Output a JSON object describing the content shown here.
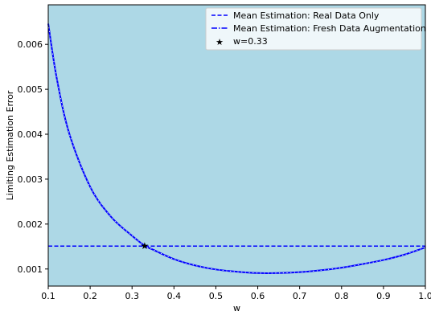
{
  "chart_data": {
    "type": "line",
    "xlabel": "w",
    "ylabel": "Limiting Estimation Error",
    "xlim": [
      0.1,
      1.0
    ],
    "ylim": [
      0.00062,
      0.00688
    ],
    "grid": false,
    "background": "#add8e6",
    "x_ticks": [
      "0.1",
      "0.2",
      "0.3",
      "0.4",
      "0.5",
      "0.6",
      "0.7",
      "0.8",
      "0.9",
      "1.0"
    ],
    "x_tick_values": [
      0.1,
      0.2,
      0.3,
      0.4,
      0.5,
      0.6,
      0.7,
      0.8,
      0.9,
      1.0
    ],
    "y_ticks": [
      "0.001",
      "0.002",
      "0.003",
      "0.004",
      "0.005",
      "0.006"
    ],
    "y_tick_values": [
      0.001,
      0.002,
      0.003,
      0.004,
      0.005,
      0.006
    ],
    "legend_placement": "top-right",
    "series": [
      {
        "name": "Mean Estimation: Real Data Only",
        "style": "dashed",
        "color": "#0000ff",
        "x": [
          0.1,
          1.0
        ],
        "y": [
          0.00151,
          0.00151
        ]
      },
      {
        "name": "Mean Estimation: Fresh Data Augmentation",
        "style": "dashdot",
        "color": "#0000ff",
        "x": [
          0.1,
          0.12,
          0.15,
          0.2,
          0.25,
          0.3,
          0.33,
          0.35,
          0.4,
          0.45,
          0.5,
          0.55,
          0.6,
          0.65,
          0.7,
          0.75,
          0.8,
          0.85,
          0.9,
          0.95,
          1.0
        ],
        "y": [
          0.00646,
          0.00526,
          0.00402,
          0.00283,
          0.00216,
          0.00174,
          0.00152,
          0.00143,
          0.00122,
          0.00108,
          0.00099,
          0.00094,
          0.00091,
          0.00091,
          0.00093,
          0.00097,
          0.00103,
          0.00111,
          0.0012,
          0.00132,
          0.00148
        ]
      }
    ],
    "marker": {
      "name": "w=0.33",
      "symbol": "star",
      "color": "#000000",
      "x": 0.33,
      "y": 0.00151
    }
  }
}
